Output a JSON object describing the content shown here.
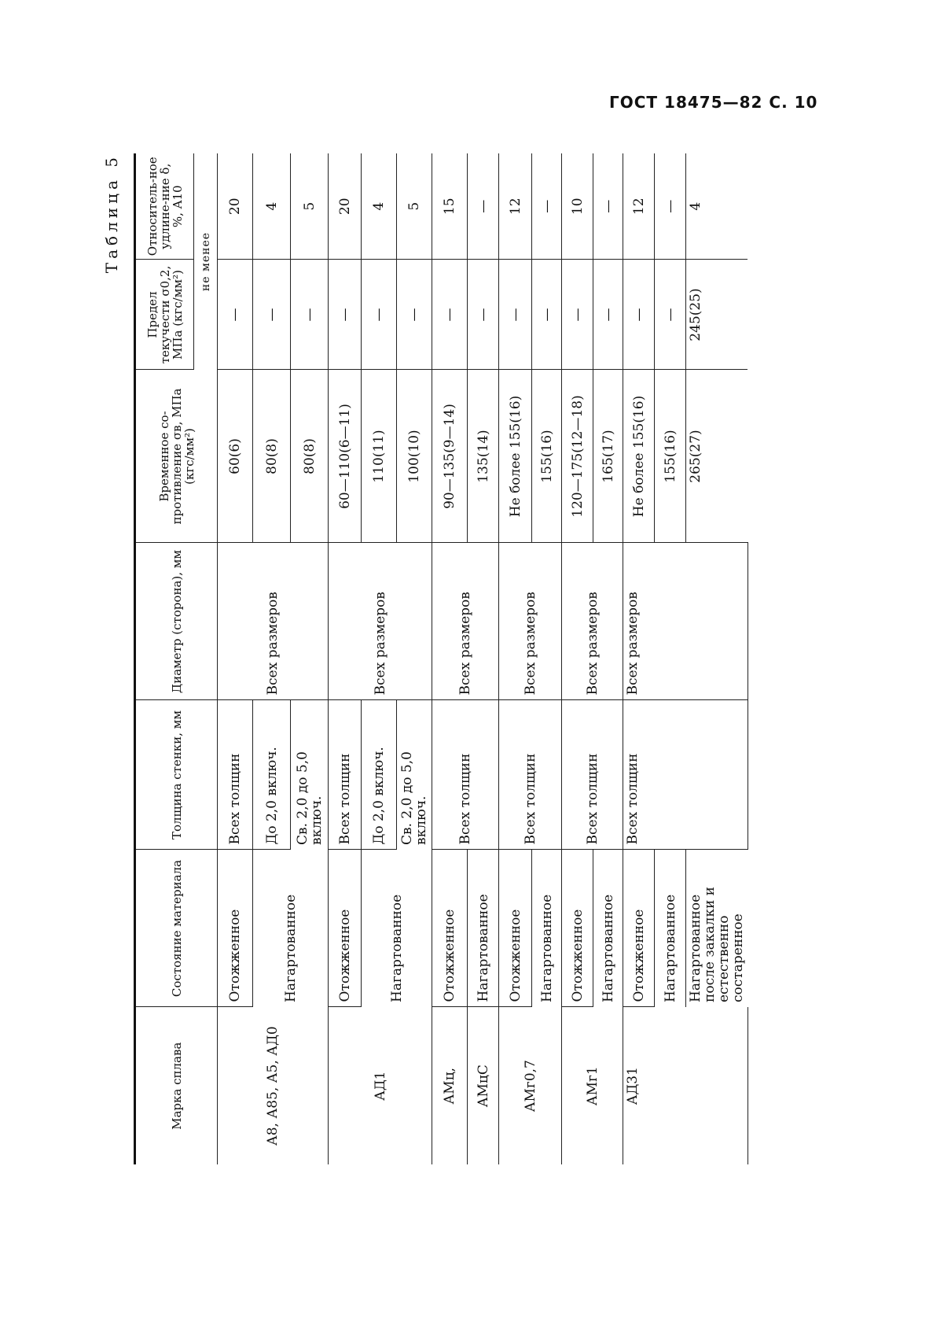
{
  "header": "ГОСТ 18475—82 С. 10",
  "caption": "Таблица 5",
  "columns": [
    "Марка сплава",
    "Состояние материала",
    "Толщина стенки, мм",
    "Диаметр (сторона), мм",
    "Временное со-противление σв, МПа (кгс/мм²)",
    "Предел текучести σ0,2, МПа (кгс/мм²)",
    "Относитель-ное удлине-ние δ, %, A10"
  ],
  "not_less": "не менее",
  "grades": [
    "А8, А85, А5, АД0",
    "АД1",
    "АМц,",
    "АМцС",
    "АМг0,7",
    "АМг1",
    "АД31"
  ],
  "states": [
    "Отожженное",
    "Нагартованное",
    "Нагартованное после закалки и естественно состаренное"
  ],
  "thickness": [
    "Всех толщин",
    "До 2,0 включ.",
    "Св. 2,0 до 5,0 включ."
  ],
  "diameter": "Всех размеров",
  "rows": [
    {
      "tensile": "60(6)",
      "yield": "—",
      "elong": "20"
    },
    {
      "tensile": "80(8)",
      "yield": "—",
      "elong": "4"
    },
    {
      "tensile": "80(8)",
      "yield": "—",
      "elong": "5"
    },
    {
      "tensile": "60—110(6—11)",
      "yield": "—",
      "elong": "20"
    },
    {
      "tensile": "110(11)",
      "yield": "—",
      "elong": "4"
    },
    {
      "tensile": "100(10)",
      "yield": "—",
      "elong": "5"
    },
    {
      "tensile": "90—135(9—14)",
      "yield": "—",
      "elong": "15"
    },
    {
      "tensile": "135(14)",
      "yield": "—",
      "elong": "—"
    },
    {
      "tensile": "Не более 155(16)",
      "yield": "—",
      "elong": "12"
    },
    {
      "tensile": "155(16)",
      "yield": "—",
      "elong": "—"
    },
    {
      "tensile": "120—175(12—18)",
      "yield": "—",
      "elong": "10"
    },
    {
      "tensile": "165(17)",
      "yield": "—",
      "elong": "—"
    },
    {
      "tensile": "Не более 155(16)",
      "yield": "—",
      "elong": "12"
    },
    {
      "tensile": "155(16)",
      "yield": "—",
      "elong": "—"
    },
    {
      "tensile": "265(27)",
      "yield": "245(25)",
      "elong": "4"
    }
  ]
}
